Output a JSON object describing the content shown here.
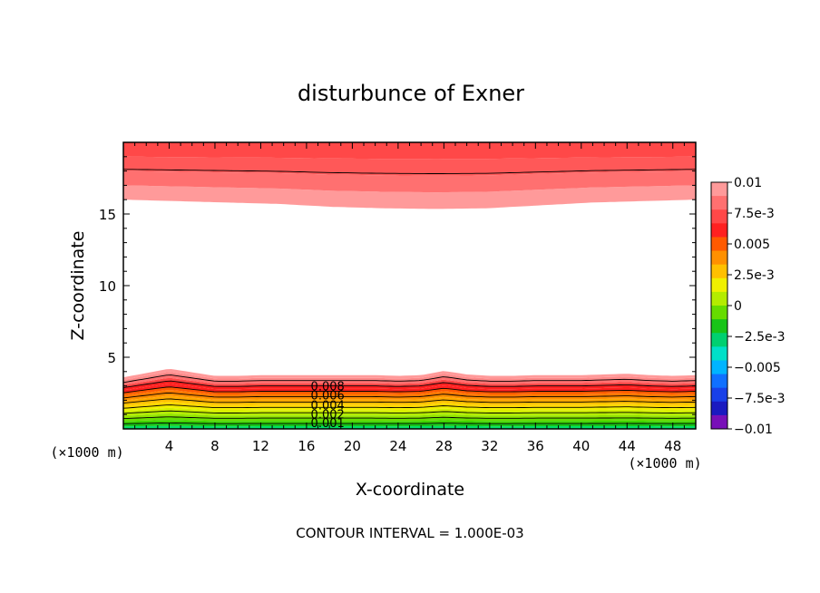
{
  "chart_data": {
    "type": "contour",
    "title": "disturbunce of Exner",
    "xlabel": "X-coordinate",
    "ylabel": "Z-coordinate",
    "x_unit_label": "(×1000 m)",
    "y_unit_label": "(×1000 m)",
    "footer": "CONTOUR INTERVAL = 1.000E-03",
    "xlim": [
      0,
      50
    ],
    "ylim": [
      0,
      20
    ],
    "x_ticks": [
      "4",
      "8",
      "12",
      "16",
      "20",
      "24",
      "28",
      "32",
      "36",
      "40",
      "44",
      "48"
    ],
    "y_ticks": [
      "5",
      "10",
      "15"
    ],
    "contour_labels": [
      "0.008",
      "0.006",
      "0.004",
      "0.002",
      "0.001"
    ],
    "colorbar": {
      "tick_labels": [
        "0.01",
        "7.5e-3",
        "0.005",
        "2.5e-3",
        "0",
        "−2.5e-3",
        "−0.005",
        "−7.5e-3",
        "−0.01"
      ],
      "colors": [
        "#ff9a9a",
        "#ff7070",
        "#ff4848",
        "#ff2020",
        "#ff5a00",
        "#ff9000",
        "#ffc000",
        "#f0f000",
        "#b4ec00",
        "#66dc00",
        "#18c418",
        "#00d070",
        "#00e0c8",
        "#00b4ff",
        "#1070ff",
        "#1840e8",
        "#1a1ac0",
        "#7810b8"
      ]
    },
    "bottom_layer_levels": [
      0,
      0.0005,
      0.001,
      0.0015,
      0.002,
      0.0025,
      0.003,
      0.0035,
      0.004,
      0.0045,
      0.005,
      0.0055,
      0.006,
      0.0065,
      0.007,
      0.0075,
      0.008,
      0.0085,
      0.009,
      0.0095
    ],
    "bottom_layer_colors": [
      "#00e068",
      "#18c418",
      "#40d400",
      "#66dc00",
      "#90e400",
      "#b4ec00",
      "#d4f000",
      "#f0f000",
      "#ffd800",
      "#ffc000",
      "#ffa800",
      "#ff9000",
      "#ff7800",
      "#ff5a00",
      "#ff2020",
      "#ff2020",
      "#ff4848",
      "#ff7070",
      "#ff8a8a",
      "#ff9a9a"
    ],
    "bottom_layer_top_z": [
      3.6,
      3.9,
      4.2,
      3.95,
      3.7,
      3.7,
      3.75,
      3.75,
      3.75,
      3.75,
      3.75,
      3.75,
      3.7,
      3.75,
      4.05,
      3.8,
      3.7,
      3.7,
      3.75,
      3.75,
      3.75,
      3.8,
      3.85,
      3.75,
      3.7,
      3.75
    ],
    "top_layer_levels": [
      0.009,
      0.0095,
      0.01,
      0.0105
    ],
    "top_layer_colors": [
      "#ff9a9a",
      "#ff7070",
      "#ff5858",
      "#ff4848"
    ],
    "top_layer_bottom_z": [
      16.0,
      15.9,
      15.8,
      15.7,
      15.5,
      15.4,
      15.35,
      15.4,
      15.6,
      15.8,
      15.9,
      16.0
    ]
  }
}
